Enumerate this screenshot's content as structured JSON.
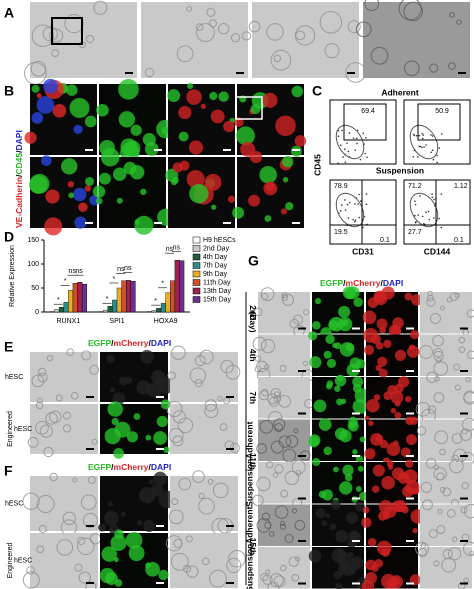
{
  "labels": {
    "A": "A",
    "B": "B",
    "C": "C",
    "D": "D",
    "E": "E",
    "F": "F",
    "G": "G"
  },
  "B": {
    "stain": [
      {
        "text": "VE-Cadherin",
        "color": "#e0201e"
      },
      {
        "text": "/",
        "color": "#000000"
      },
      {
        "text": "CD45",
        "color": "#2db52d"
      },
      {
        "text": "/",
        "color": "#000000"
      },
      {
        "text": "DAPI",
        "color": "#2222cc"
      }
    ]
  },
  "C": {
    "rows": [
      "Adherent",
      "Suspension"
    ],
    "y_axis": "CD45",
    "x_axes": [
      "CD31",
      "CD144"
    ],
    "gates": [
      "69.4",
      "50.9"
    ],
    "quadrants": [
      {
        "ul": "78.9",
        "ll": "19.5",
        "lr": "0.1"
      },
      {
        "ul": "71.2",
        "ur": "1.12",
        "ll": "27.7",
        "lr": "0.1"
      }
    ]
  },
  "chart_data": {
    "type": "bar",
    "y_label": "Relative Expression",
    "categories": [
      "RUNX1",
      "SPI1",
      "HOXA9"
    ],
    "ylim": [
      0,
      150
    ],
    "yticks": [
      0,
      50,
      100,
      150
    ],
    "series": [
      {
        "name": "H9 hESCs",
        "color": "#ffffff",
        "values": [
          1,
          1,
          1
        ]
      },
      {
        "name": "2nd Day",
        "color": "#c8c8c8",
        "values": [
          5,
          4,
          3
        ]
      },
      {
        "name": "4th Day",
        "color": "#1f5f3a",
        "values": [
          10,
          12,
          8
        ]
      },
      {
        "name": "7th Day",
        "color": "#2a8c8c",
        "values": [
          20,
          25,
          18
        ]
      },
      {
        "name": "9th Day",
        "color": "#e8b020",
        "values": [
          45,
          50,
          40
        ]
      },
      {
        "name": "11th Day",
        "color": "#d0502a",
        "values": [
          60,
          65,
          65
        ]
      },
      {
        "name": "13th Day",
        "color": "#a02050",
        "values": [
          62,
          66,
          108
        ]
      },
      {
        "name": "15th Day",
        "color": "#6a3090",
        "values": [
          58,
          64,
          107
        ]
      }
    ],
    "significance": [
      [
        "*",
        "*",
        "ns",
        "ns"
      ],
      [
        "*",
        "*",
        "ns",
        "ns"
      ],
      [
        "*",
        "*",
        "ns",
        "ns"
      ]
    ]
  },
  "E": {
    "stain": [
      {
        "text": "EGFP",
        "color": "#22bb22"
      },
      {
        "text": "/",
        "color": "#000000"
      },
      {
        "text": "mCherry",
        "color": "#dd2222"
      },
      {
        "text": "/",
        "color": "#000000"
      },
      {
        "text": "DAPI",
        "color": "#2222cc"
      }
    ],
    "rows": [
      [
        "hESC"
      ],
      [
        "Engineered",
        "hESC"
      ]
    ]
  },
  "F": {
    "stain": [
      {
        "text": "EGFP",
        "color": "#22bb22"
      },
      {
        "text": "/",
        "color": "#000000"
      },
      {
        "text": "mCherry",
        "color": "#dd2222"
      },
      {
        "text": "/",
        "color": "#000000"
      },
      {
        "text": "DAPI",
        "color": "#2222cc"
      }
    ],
    "rows": [
      [
        "hESC"
      ],
      [
        "Engineered",
        "hESC"
      ]
    ]
  },
  "G": {
    "stain": [
      {
        "text": "EGFP",
        "color": "#22bb22"
      },
      {
        "text": "/",
        "color": "#000000"
      },
      {
        "text": "mCherry",
        "color": "#dd2222"
      },
      {
        "text": "/",
        "color": "#000000"
      },
      {
        "text": "DAPI",
        "color": "#2222cc"
      }
    ],
    "days": [
      "2nd",
      "4th",
      "7th",
      "11th",
      "15th"
    ],
    "unit": "(Day)",
    "conditions": [
      "Adherent",
      "Suspension"
    ]
  }
}
